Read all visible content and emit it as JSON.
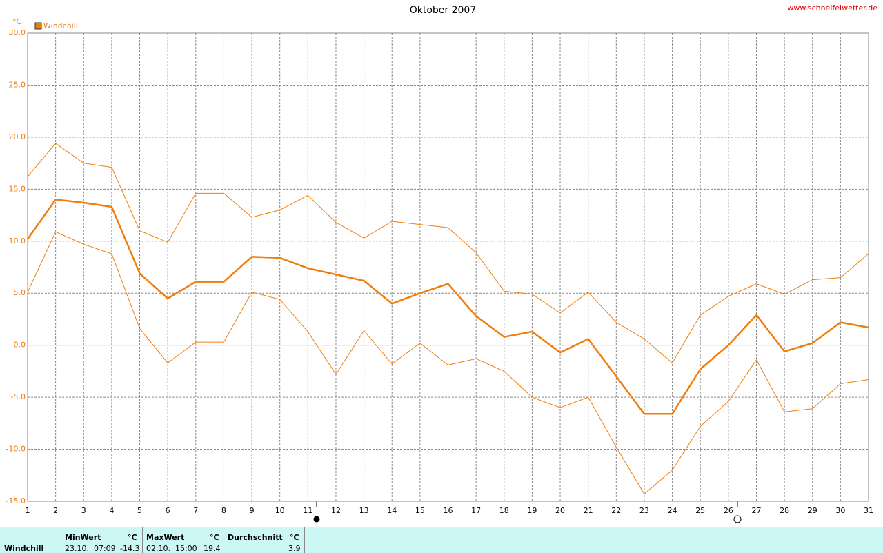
{
  "chart_data": {
    "type": "line",
    "title": "Oktober 2007",
    "source": "www.schneifelwetter.de",
    "unit": "°C",
    "x": [
      1,
      2,
      3,
      4,
      5,
      6,
      7,
      8,
      9,
      10,
      11,
      12,
      13,
      14,
      15,
      16,
      17,
      18,
      19,
      20,
      21,
      22,
      23,
      24,
      25,
      26,
      27,
      28,
      29,
      30,
      31
    ],
    "series": [
      {
        "name": "Windchill",
        "color": "#f07d0a",
        "width": 2.5,
        "values": [
          10.2,
          14.0,
          13.7,
          13.3,
          6.9,
          4.5,
          6.1,
          6.1,
          8.5,
          8.4,
          7.4,
          6.8,
          6.2,
          4.0,
          5.0,
          5.9,
          2.8,
          0.8,
          1.3,
          -0.7,
          0.6,
          -3.0,
          -6.6,
          -6.6,
          -2.3,
          0.0,
          2.9,
          -0.6,
          0.2,
          2.2,
          1.7
        ]
      },
      {
        "color": "#f07d0a",
        "width": 1,
        "values": [
          16.2,
          19.4,
          17.5,
          17.1,
          11.0,
          9.9,
          14.6,
          14.6,
          12.3,
          13.0,
          14.4,
          11.8,
          10.3,
          11.9,
          11.6,
          11.3,
          8.9,
          5.2,
          4.9,
          3.1,
          5.1,
          2.2,
          0.6,
          -1.7,
          2.9,
          4.7,
          5.9,
          4.9,
          6.3,
          6.5,
          8.8
        ]
      },
      {
        "color": "#f07d0a",
        "width": 1,
        "values": [
          5.1,
          10.9,
          9.7,
          8.8,
          1.6,
          -1.7,
          0.3,
          0.3,
          5.1,
          4.4,
          1.3,
          -2.8,
          1.4,
          -1.8,
          0.2,
          -1.9,
          -1.3,
          -2.5,
          -5.0,
          -6.0,
          -5.0,
          -9.8,
          -14.3,
          -12.0,
          -7.8,
          -5.4,
          -1.4,
          -6.4,
          -6.1,
          -3.7,
          -3.3
        ]
      }
    ],
    "xlim": [
      1,
      31
    ],
    "xticks": [
      1,
      2,
      3,
      4,
      5,
      6,
      7,
      8,
      9,
      10,
      11,
      12,
      13,
      14,
      15,
      16,
      17,
      18,
      19,
      20,
      21,
      22,
      23,
      24,
      25,
      26,
      27,
      28,
      29,
      30,
      31
    ],
    "ylim": [
      -15,
      30
    ],
    "yticks": [
      {
        "value": -15,
        "label": "-15.0"
      },
      {
        "value": -10,
        "label": "-10.0"
      },
      {
        "value": -5,
        "label": "-5.0"
      },
      {
        "value": 0,
        "label": "0.0"
      },
      {
        "value": 5,
        "label": "5.0"
      },
      {
        "value": 10,
        "label": "10.0"
      },
      {
        "value": 15,
        "label": "15.0"
      },
      {
        "value": 20,
        "label": "20.0"
      },
      {
        "value": 25,
        "label": "25.0"
      },
      {
        "value": 30,
        "label": "30.0"
      }
    ],
    "grid": true
  },
  "stats": {
    "label": "Windchill",
    "min_header": "MinWert",
    "min_unit": "°C",
    "min_time": "23.10.  07:09",
    "min_value": -14.3,
    "max_header": "MaxWert",
    "max_unit": "°C",
    "max_time": "02.10.  15:00",
    "max_value": 19.4,
    "avg_header": "Durchschnitt",
    "avg_unit": "°C",
    "avg_value": 3.9
  }
}
